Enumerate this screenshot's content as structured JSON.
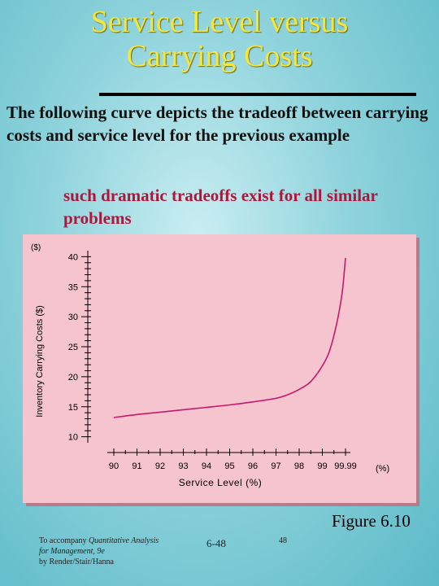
{
  "slide": {
    "title_line1": "Service Level versus",
    "title_line2": "Carrying Costs",
    "body": "The following curve depicts the tradeoff between carrying costs and service level for the previous example",
    "sub": "such dramatic tradeoffs exist for all similar problems",
    "figure_label": "Figure 6.10",
    "footer_line1": "To accompany ",
    "footer_italic1": "Quantitative Analysis",
    "footer_italic2": "for Management, 9e",
    "footer_line3": "by Render/Stair/Hanna",
    "slide_code": "6-48",
    "page_number": "48"
  },
  "chart_data": {
    "type": "line",
    "title": "",
    "xlabel": "Service Level (%)",
    "x_unit": "(%)",
    "ylabel": "Inventory Carrying Costs ($)",
    "y_unit": "($)",
    "categories": [
      "90",
      "91",
      "92",
      "93",
      "94",
      "95",
      "96",
      "97",
      "98",
      "99",
      "99.99"
    ],
    "yticks": [
      10,
      15,
      20,
      25,
      30,
      35,
      40
    ],
    "ylim": [
      9,
      41
    ],
    "grid": false,
    "legend": "none",
    "curve_color": "#c8186e",
    "series": [
      {
        "name": "",
        "points": [
          [
            0,
            13.2
          ],
          [
            1,
            13.7
          ],
          [
            2,
            14.1
          ],
          [
            3,
            14.5
          ],
          [
            4,
            14.9
          ],
          [
            5,
            15.3
          ],
          [
            6,
            15.8
          ],
          [
            7,
            16.4
          ],
          [
            7.5,
            17.0
          ],
          [
            8,
            17.9
          ],
          [
            8.5,
            19.2
          ],
          [
            9,
            21.8
          ],
          [
            9.3,
            24.2
          ],
          [
            9.6,
            28.5
          ],
          [
            9.85,
            33.8
          ],
          [
            10,
            39.8
          ]
        ]
      }
    ]
  }
}
